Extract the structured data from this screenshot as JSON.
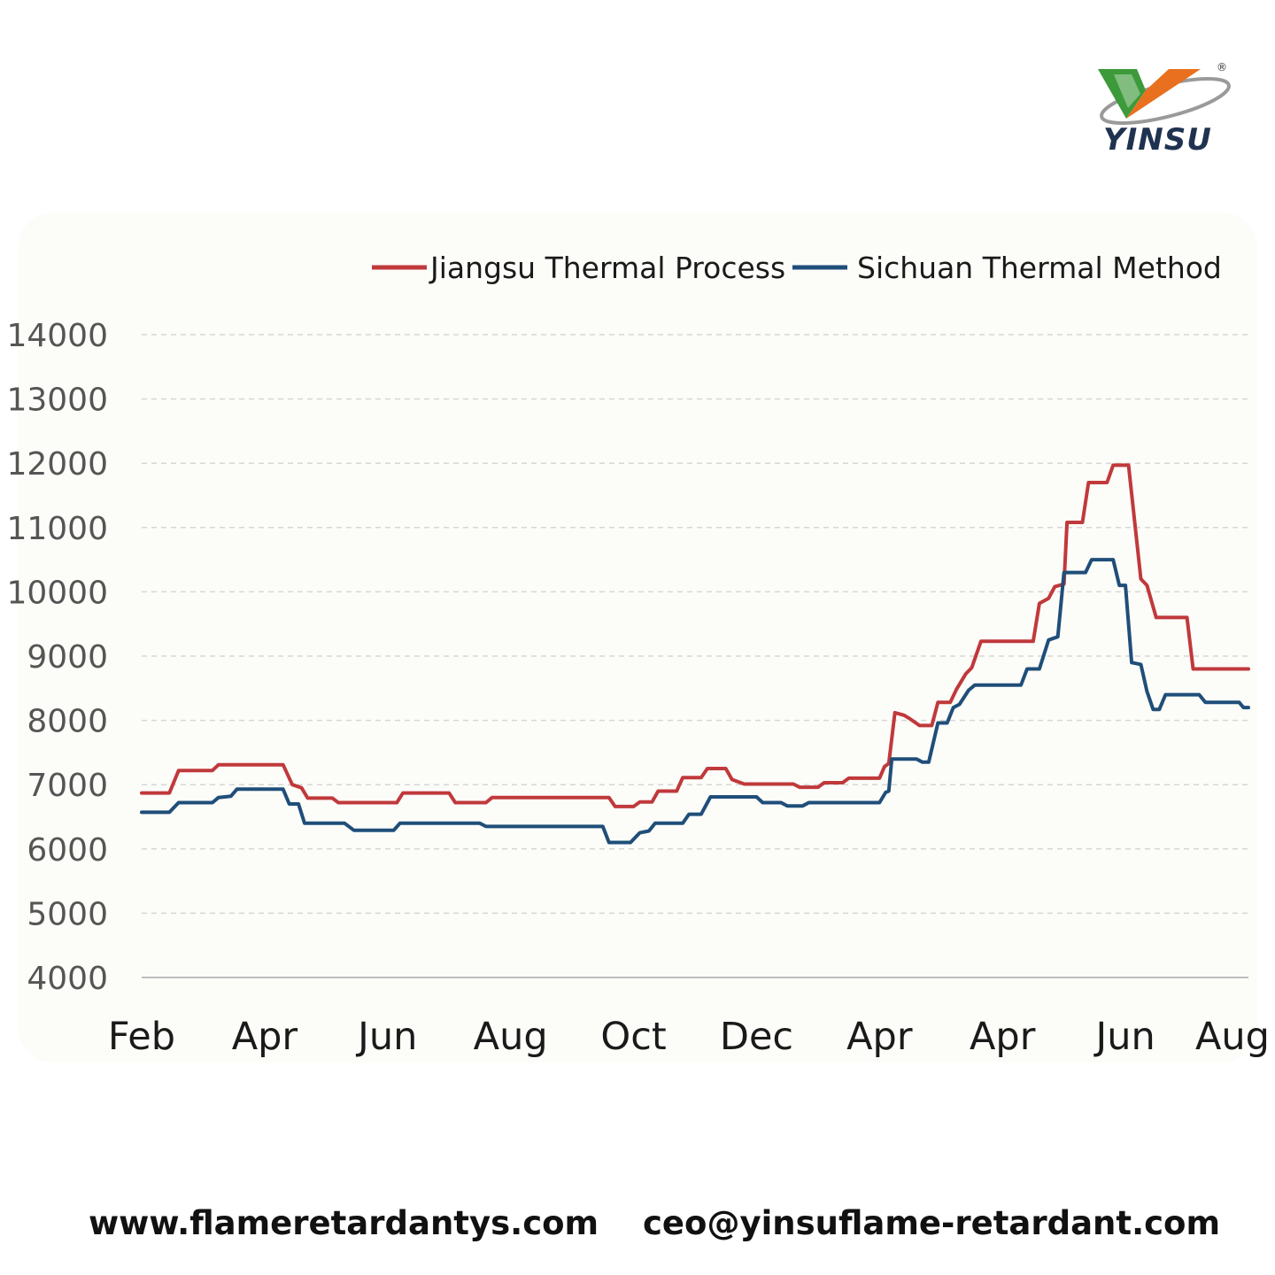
{
  "brand": {
    "name": "YINSU",
    "registered_mark": "®",
    "logo_colors": {
      "green": "#3d9a3a",
      "orange": "#e8701f",
      "ring": "#9a9a9a",
      "text": "#1f3350"
    }
  },
  "footer": {
    "website": "www.flameretardantys.com",
    "email": "ceo@yinsuflame-retardant.com"
  },
  "chart_data": {
    "type": "line",
    "title": "",
    "xlabel": "",
    "ylabel": "",
    "ylim": [
      4000,
      14000
    ],
    "yticks": [
      "4000",
      "5000",
      "6000",
      "7000",
      "8000",
      "9000",
      "10000",
      "11000",
      "12000",
      "13000",
      "14000"
    ],
    "xticks": [
      {
        "label": "Feb",
        "pos": 0
      },
      {
        "label": "Apr",
        "pos": 2
      },
      {
        "label": "Jun",
        "pos": 4
      },
      {
        "label": "Aug",
        "pos": 6
      },
      {
        "label": "Oct",
        "pos": 8
      },
      {
        "label": "Dec",
        "pos": 10
      },
      {
        "label": "Apr",
        "pos": 12
      },
      {
        "label": "Apr",
        "pos": 14
      },
      {
        "label": "Jun",
        "pos": 16
      },
      {
        "label": "Aug",
        "pos": 18
      }
    ],
    "xlim": [
      0,
      18
    ],
    "grid": true,
    "legend": "top-right",
    "series": [
      {
        "name": "Jiangsu Thermal Process",
        "color": "#c0393b",
        "points": [
          [
            0,
            6870
          ],
          [
            0.45,
            6870
          ],
          [
            0.6,
            7220
          ],
          [
            1.15,
            7220
          ],
          [
            1.25,
            7310
          ],
          [
            2.3,
            7310
          ],
          [
            2.45,
            7000
          ],
          [
            2.6,
            6950
          ],
          [
            2.7,
            6790
          ],
          [
            3.1,
            6790
          ],
          [
            3.2,
            6720
          ],
          [
            4.15,
            6720
          ],
          [
            4.25,
            6870
          ],
          [
            5.0,
            6870
          ],
          [
            5.1,
            6720
          ],
          [
            5.6,
            6720
          ],
          [
            5.7,
            6800
          ],
          [
            7.6,
            6800
          ],
          [
            7.7,
            6660
          ],
          [
            8.0,
            6660
          ],
          [
            8.1,
            6730
          ],
          [
            8.3,
            6730
          ],
          [
            8.4,
            6900
          ],
          [
            8.7,
            6900
          ],
          [
            8.8,
            7110
          ],
          [
            9.1,
            7110
          ],
          [
            9.2,
            7250
          ],
          [
            9.5,
            7250
          ],
          [
            9.6,
            7080
          ],
          [
            9.8,
            7010
          ],
          [
            10.6,
            7010
          ],
          [
            10.7,
            6960
          ],
          [
            11.0,
            6960
          ],
          [
            11.1,
            7030
          ],
          [
            11.4,
            7030
          ],
          [
            11.5,
            7100
          ],
          [
            12.0,
            7100
          ],
          [
            12.08,
            7280
          ],
          [
            12.15,
            7330
          ],
          [
            12.25,
            8120
          ],
          [
            12.4,
            8080
          ],
          [
            12.5,
            8020
          ],
          [
            12.65,
            7920
          ],
          [
            12.85,
            7920
          ],
          [
            12.95,
            8280
          ],
          [
            13.15,
            8280
          ],
          [
            13.25,
            8480
          ],
          [
            13.4,
            8720
          ],
          [
            13.5,
            8820
          ],
          [
            13.65,
            9230
          ],
          [
            14.5,
            9230
          ],
          [
            14.6,
            9820
          ],
          [
            14.75,
            9900
          ],
          [
            14.85,
            10080
          ],
          [
            15.0,
            10120
          ],
          [
            15.05,
            11080
          ],
          [
            15.3,
            11080
          ],
          [
            15.4,
            11700
          ],
          [
            15.7,
            11700
          ],
          [
            15.8,
            11970
          ],
          [
            16.05,
            11970
          ],
          [
            16.25,
            10200
          ],
          [
            16.35,
            10100
          ],
          [
            16.5,
            9600
          ],
          [
            17.0,
            9600
          ],
          [
            17.1,
            8800
          ],
          [
            18,
            8800
          ]
        ]
      },
      {
        "name": "Sichuan Thermal Method",
        "color": "#1f4e79",
        "points": [
          [
            0,
            6570
          ],
          [
            0.45,
            6570
          ],
          [
            0.6,
            6720
          ],
          [
            1.15,
            6720
          ],
          [
            1.25,
            6800
          ],
          [
            1.45,
            6820
          ],
          [
            1.55,
            6930
          ],
          [
            2.3,
            6930
          ],
          [
            2.4,
            6700
          ],
          [
            2.55,
            6700
          ],
          [
            2.65,
            6400
          ],
          [
            3.3,
            6400
          ],
          [
            3.45,
            6290
          ],
          [
            4.1,
            6290
          ],
          [
            4.2,
            6400
          ],
          [
            5.5,
            6400
          ],
          [
            5.6,
            6350
          ],
          [
            7.5,
            6350
          ],
          [
            7.6,
            6100
          ],
          [
            7.95,
            6100
          ],
          [
            8.1,
            6250
          ],
          [
            8.25,
            6280
          ],
          [
            8.35,
            6400
          ],
          [
            8.8,
            6400
          ],
          [
            8.9,
            6540
          ],
          [
            9.1,
            6540
          ],
          [
            9.25,
            6810
          ],
          [
            10.0,
            6810
          ],
          [
            10.1,
            6720
          ],
          [
            10.4,
            6720
          ],
          [
            10.5,
            6670
          ],
          [
            10.75,
            6670
          ],
          [
            10.85,
            6720
          ],
          [
            12.0,
            6720
          ],
          [
            12.1,
            6880
          ],
          [
            12.15,
            6900
          ],
          [
            12.2,
            7400
          ],
          [
            12.6,
            7400
          ],
          [
            12.7,
            7350
          ],
          [
            12.8,
            7350
          ],
          [
            12.95,
            7960
          ],
          [
            13.1,
            7960
          ],
          [
            13.2,
            8200
          ],
          [
            13.3,
            8250
          ],
          [
            13.45,
            8470
          ],
          [
            13.55,
            8550
          ],
          [
            14.3,
            8550
          ],
          [
            14.4,
            8800
          ],
          [
            14.6,
            8800
          ],
          [
            14.75,
            9250
          ],
          [
            14.9,
            9300
          ],
          [
            15.0,
            10300
          ],
          [
            15.35,
            10300
          ],
          [
            15.45,
            10500
          ],
          [
            15.8,
            10500
          ],
          [
            15.9,
            10100
          ],
          [
            16.0,
            10100
          ],
          [
            16.1,
            8900
          ],
          [
            16.25,
            8870
          ],
          [
            16.35,
            8450
          ],
          [
            16.45,
            8170
          ],
          [
            16.55,
            8170
          ],
          [
            16.65,
            8400
          ],
          [
            17.2,
            8400
          ],
          [
            17.3,
            8280
          ],
          [
            17.85,
            8280
          ],
          [
            17.92,
            8200
          ],
          [
            18,
            8200
          ]
        ]
      }
    ]
  }
}
